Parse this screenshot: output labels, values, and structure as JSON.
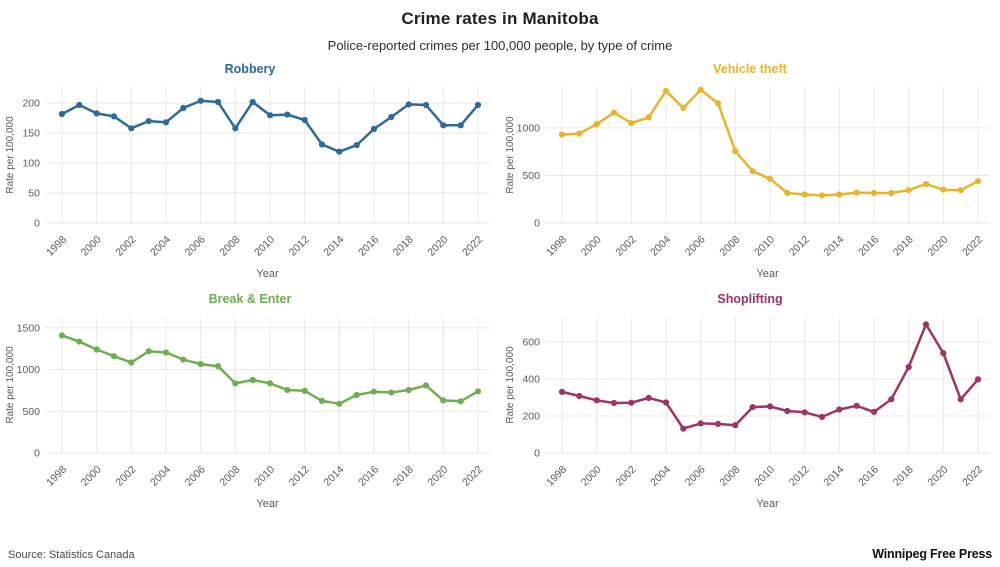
{
  "header": {
    "title": "Crime rates in Manitoba",
    "subtitle": "Police-reported crimes per 100,000 people, by type of crime"
  },
  "footer": {
    "source": "Source: Statistics Canada",
    "publisher": "Winnipeg Free Press"
  },
  "chart_data": [
    {
      "type": "line",
      "title": "Robbery",
      "color": "#2b6a9b",
      "ylabel": "Rate per 100,000",
      "xlabel": "Year",
      "grid": true,
      "x": [
        1998,
        1999,
        2000,
        2001,
        2002,
        2003,
        2004,
        2005,
        2006,
        2007,
        2008,
        2009,
        2010,
        2011,
        2012,
        2013,
        2014,
        2015,
        2016,
        2017,
        2018,
        2019,
        2020,
        2021,
        2022
      ],
      "values": [
        182,
        197,
        183,
        178,
        158,
        170,
        168,
        192,
        204,
        202,
        158,
        202,
        180,
        181,
        172,
        131,
        119,
        130,
        157,
        177,
        198,
        197,
        163,
        163,
        197
      ],
      "yticks": [
        0,
        50,
        100,
        150,
        200
      ],
      "ylim": [
        0,
        227
      ],
      "xtick_step": 2
    },
    {
      "type": "line",
      "title": "Vehicle theft",
      "color": "#e9b32a",
      "ylabel": "Rate per 100,000",
      "xlabel": "Year",
      "grid": true,
      "x": [
        1998,
        1999,
        2000,
        2001,
        2002,
        2003,
        2004,
        2005,
        2006,
        2007,
        2008,
        2009,
        2010,
        2011,
        2012,
        2013,
        2014,
        2015,
        2016,
        2017,
        2018,
        2019,
        2020,
        2021,
        2022
      ],
      "values": [
        930,
        940,
        1040,
        1160,
        1050,
        1110,
        1390,
        1210,
        1400,
        1260,
        755,
        545,
        465,
        315,
        300,
        290,
        300,
        320,
        315,
        315,
        345,
        410,
        350,
        345,
        440
      ],
      "yticks": [
        0,
        500,
        1000
      ],
      "ylim": [
        0,
        1430
      ],
      "xtick_step": 2
    },
    {
      "type": "line",
      "title": "Break & Enter",
      "color": "#6fae4e",
      "ylabel": "Rate per 100,000",
      "xlabel": "Year",
      "grid": true,
      "x": [
        1998,
        1999,
        2000,
        2001,
        2002,
        2003,
        2004,
        2005,
        2006,
        2007,
        2008,
        2009,
        2010,
        2011,
        2012,
        2013,
        2014,
        2015,
        2016,
        2017,
        2018,
        2019,
        2020,
        2021,
        2022
      ],
      "values": [
        1410,
        1335,
        1240,
        1160,
        1085,
        1220,
        1205,
        1120,
        1065,
        1040,
        835,
        875,
        835,
        755,
        745,
        625,
        590,
        695,
        735,
        725,
        755,
        810,
        630,
        620,
        740
      ],
      "yticks": [
        0,
        500,
        1000,
        1500
      ],
      "ylim": [
        0,
        1630
      ],
      "xtick_step": 2
    },
    {
      "type": "line",
      "title": "Shoplifting",
      "color": "#9e3366",
      "ylabel": "Rate per 100,000",
      "xlabel": "Year",
      "grid": true,
      "x": [
        1998,
        1999,
        2000,
        2001,
        2002,
        2003,
        2004,
        2005,
        2006,
        2007,
        2008,
        2009,
        2010,
        2011,
        2012,
        2013,
        2014,
        2015,
        2016,
        2017,
        2018,
        2019,
        2020,
        2021,
        2022
      ],
      "values": [
        330,
        308,
        285,
        270,
        272,
        298,
        273,
        132,
        160,
        157,
        150,
        248,
        252,
        227,
        220,
        195,
        235,
        255,
        222,
        290,
        465,
        695,
        540,
        290,
        398
      ],
      "yticks": [
        0,
        200,
        400,
        600
      ],
      "ylim": [
        0,
        735
      ],
      "xtick_step": 2
    }
  ]
}
